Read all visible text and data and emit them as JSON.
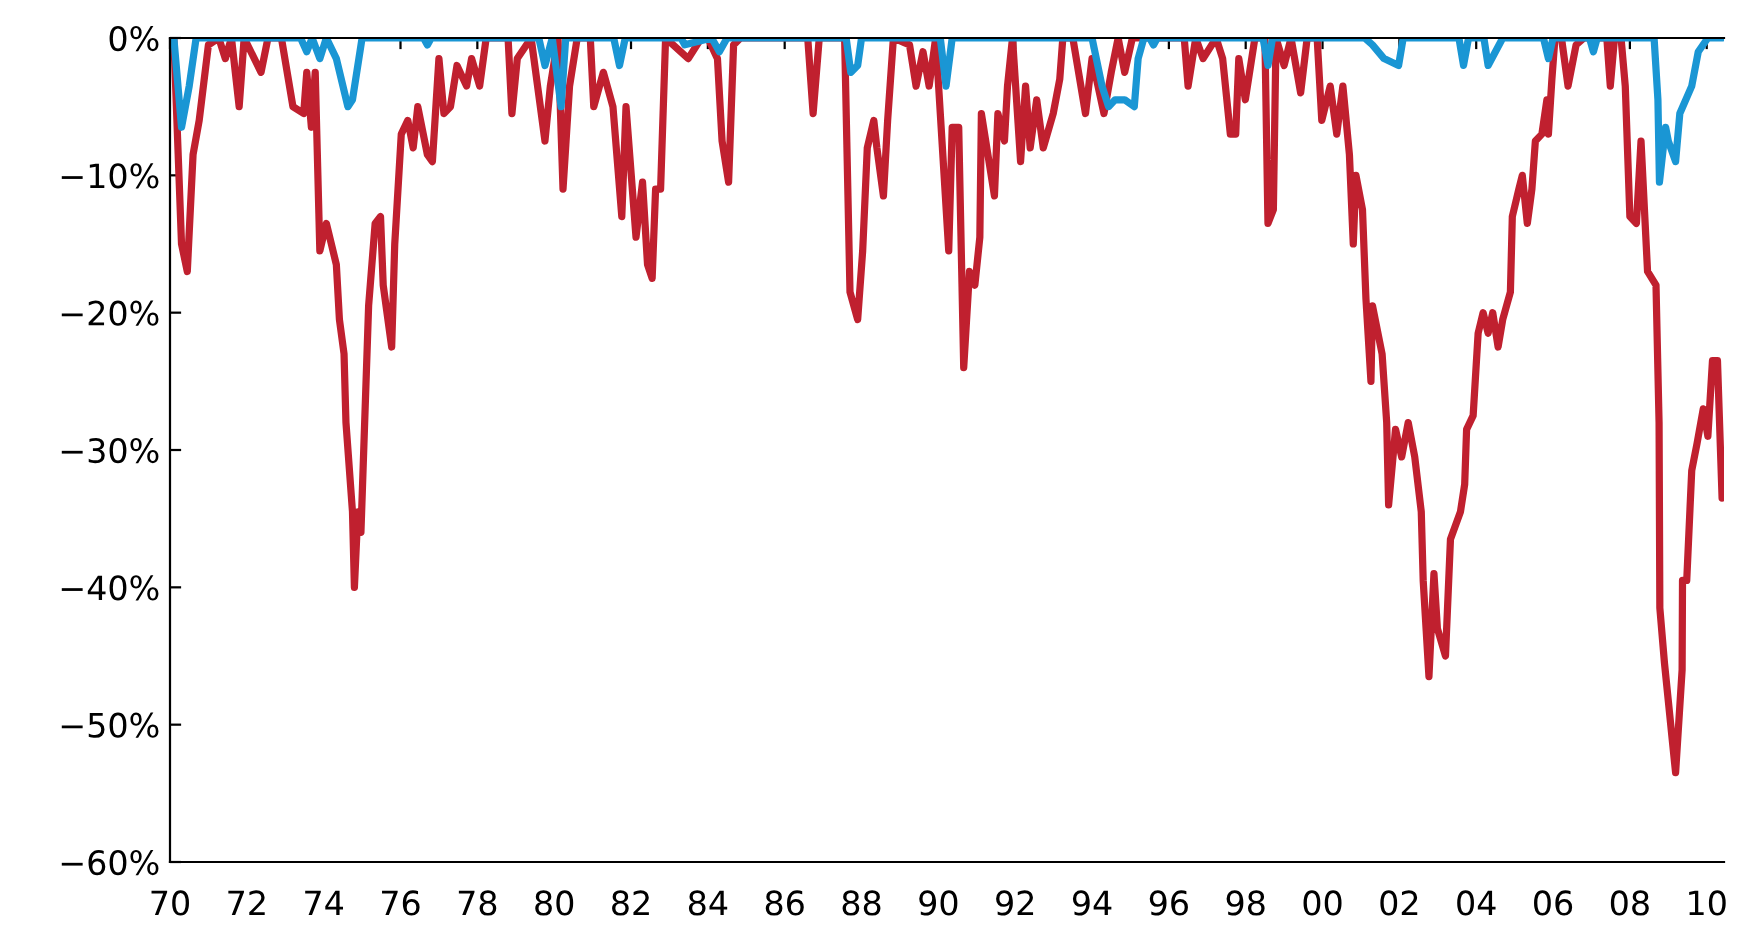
{
  "chart_data": {
    "type": "line",
    "xlim": [
      1970,
      2010.45
    ],
    "ylim": [
      -60,
      0
    ],
    "xticks": [
      {
        "value": 1970,
        "label": "70"
      },
      {
        "value": 1972,
        "label": "72"
      },
      {
        "value": 1974,
        "label": "74"
      },
      {
        "value": 1976,
        "label": "76"
      },
      {
        "value": 1978,
        "label": "78"
      },
      {
        "value": 1980,
        "label": "80"
      },
      {
        "value": 1982,
        "label": "82"
      },
      {
        "value": 1984,
        "label": "84"
      },
      {
        "value": 1986,
        "label": "86"
      },
      {
        "value": 1988,
        "label": "88"
      },
      {
        "value": 1990,
        "label": "90"
      },
      {
        "value": 1992,
        "label": "92"
      },
      {
        "value": 1994,
        "label": "94"
      },
      {
        "value": 1996,
        "label": "96"
      },
      {
        "value": 1998,
        "label": "98"
      },
      {
        "value": 2000,
        "label": "00"
      },
      {
        "value": 2002,
        "label": "02"
      },
      {
        "value": 2004,
        "label": "04"
      },
      {
        "value": 2006,
        "label": "06"
      },
      {
        "value": 2008,
        "label": "08"
      },
      {
        "value": 2010,
        "label": "10"
      }
    ],
    "yticks": [
      {
        "value": -60,
        "label": "−60%"
      },
      {
        "value": -50,
        "label": "−50%"
      },
      {
        "value": -40,
        "label": "−40%"
      },
      {
        "value": -30,
        "label": "−30%"
      },
      {
        "value": -20,
        "label": "−20%"
      },
      {
        "value": -10,
        "label": "−10%"
      },
      {
        "value": 0,
        "label": "0%"
      }
    ],
    "grid": false,
    "line_style": "solid",
    "marker": "none",
    "series": [
      {
        "color": "#c0202f",
        "x": [
          1970.1,
          1970.3,
          1970.45,
          1970.6,
          1970.76,
          1971.0,
          1971.27,
          1971.44,
          1971.6,
          1971.8,
          1971.93,
          1972.37,
          1972.55,
          1972.9,
          1973.2,
          1973.48,
          1973.56,
          1973.68,
          1973.78,
          1973.9,
          1974.07,
          1974.33,
          1974.41,
          1974.53,
          1974.58,
          1974.75,
          1974.8,
          1974.89,
          1974.97,
          1975.17,
          1975.34,
          1975.48,
          1975.55,
          1975.77,
          1975.85,
          1976.02,
          1976.19,
          1976.33,
          1976.45,
          1976.7,
          1976.83,
          1977.0,
          1977.13,
          1977.3,
          1977.47,
          1977.72,
          1977.85,
          1978.06,
          1978.23,
          1978.8,
          1978.9,
          1979.04,
          1979.4,
          1979.76,
          1979.9,
          1980.1,
          1980.23,
          1980.4,
          1980.6,
          1980.94,
          1981.03,
          1981.28,
          1981.53,
          1981.76,
          1981.87,
          1982.13,
          1982.3,
          1982.43,
          1982.55,
          1982.64,
          1982.77,
          1982.9,
          1983.49,
          1983.83,
          1984.0,
          1984.25,
          1984.37,
          1984.54,
          1984.67,
          1984.85,
          1986.6,
          1986.74,
          1986.9,
          1987.56,
          1987.7,
          1987.9,
          1988.03,
          1988.15,
          1988.32,
          1988.4,
          1988.57,
          1988.68,
          1988.83,
          1989.25,
          1989.42,
          1989.6,
          1989.76,
          1989.93,
          1990.27,
          1990.36,
          1990.53,
          1990.66,
          1990.81,
          1990.95,
          1991.08,
          1991.12,
          1991.29,
          1991.46,
          1991.55,
          1991.72,
          1991.8,
          1991.93,
          1992.14,
          1992.27,
          1992.39,
          1992.56,
          1992.73,
          1992.99,
          1993.16,
          1993.24,
          1993.5,
          1993.83,
          1994.0,
          1994.31,
          1994.5,
          1994.68,
          1994.85,
          1995.05,
          1996.4,
          1996.5,
          1996.7,
          1996.89,
          1997.23,
          1997.4,
          1997.6,
          1997.74,
          1997.82,
          1997.99,
          1998.24,
          1998.5,
          1998.58,
          1998.72,
          1998.79,
          1999.0,
          1999.18,
          1999.43,
          1999.6,
          1999.86,
          1999.98,
          2000.2,
          2000.37,
          2000.53,
          2000.7,
          2000.8,
          2000.87,
          2001.04,
          2001.13,
          2001.26,
          2001.3,
          2001.55,
          2001.67,
          2001.72,
          2001.9,
          2002.06,
          2002.23,
          2002.4,
          2002.57,
          2002.62,
          2002.77,
          2002.9,
          2002.99,
          2003.2,
          2003.33,
          2003.59,
          2003.7,
          2003.75,
          2003.92,
          2004.05,
          2004.18,
          2004.31,
          2004.43,
          2004.57,
          2004.69,
          2004.89,
          2004.94,
          2005.11,
          2005.2,
          2005.33,
          2005.45,
          2005.54,
          2005.71,
          2005.84,
          2005.88,
          2005.97,
          2006.05,
          2006.22,
          2006.39,
          2006.6,
          2006.8,
          2007.4,
          2007.49,
          2007.6,
          2007.77,
          2007.88,
          2008.0,
          2008.17,
          2008.29,
          2008.46,
          2008.68,
          2008.76,
          2008.78,
          2008.9,
          2009.19,
          2009.36,
          2009.37,
          2009.48,
          2009.61,
          2009.75,
          2009.91,
          2010.03,
          2010.15,
          2010.28,
          2010.4
        ],
        "values": [
          0,
          -15,
          -17,
          -8.5,
          -6,
          -0.5,
          0,
          -1.5,
          0,
          -5,
          0,
          -2.5,
          0,
          0,
          -5,
          -5.5,
          -2.5,
          -6.5,
          -2.5,
          -15.5,
          -13.5,
          -16.5,
          -20.5,
          -23,
          -28,
          -34.5,
          -40,
          -34.5,
          -36,
          -19.5,
          -13.5,
          -13,
          -18,
          -22.5,
          -15,
          -7,
          -6,
          -8,
          -5,
          -8.5,
          -9,
          -1.5,
          -5.5,
          -5,
          -2,
          -3.5,
          -1.5,
          -3.5,
          0,
          0,
          -5.5,
          -1.5,
          0,
          -7.5,
          -3.5,
          0,
          -11,
          -3.5,
          0,
          0,
          -5,
          -2.5,
          -5,
          -13,
          -5,
          -14.5,
          -10.5,
          -16.5,
          -17.5,
          -11,
          -11,
          0,
          -1.5,
          0,
          0,
          -1.5,
          -7.5,
          -10.5,
          -0.5,
          0,
          0,
          -5.5,
          0,
          0,
          -18.5,
          -20.5,
          -15.5,
          -8,
          -6,
          -8,
          -11.5,
          -6,
          0,
          -0.5,
          -3.5,
          -1,
          -3.5,
          0,
          -15.5,
          -6.5,
          -6.5,
          -24,
          -17,
          -18,
          -14.5,
          -5.5,
          -8.5,
          -11.5,
          -5.5,
          -7.5,
          -3.5,
          0,
          -9,
          -3.5,
          -8,
          -4.5,
          -8,
          -5.5,
          -3,
          0,
          0,
          -5.5,
          -1.5,
          -5.5,
          -2.5,
          0,
          -2.5,
          0,
          0,
          -3.5,
          0,
          -1.5,
          0,
          -1.5,
          -7,
          -7,
          -1.5,
          -4.5,
          0,
          0,
          -13.5,
          -12.5,
          0,
          -2,
          0,
          -4,
          0,
          0,
          -6,
          -3.5,
          -7,
          -3.5,
          -8.5,
          -15,
          -10,
          -12.5,
          -19,
          -25,
          -19.5,
          -23,
          -28,
          -34,
          -28.5,
          -30.5,
          -28,
          -30.5,
          -34.5,
          -39.5,
          -46.5,
          -39,
          -43,
          -45,
          -36.5,
          -34.5,
          -32.5,
          -28.5,
          -27.5,
          -21.5,
          -20,
          -21.5,
          -20,
          -22.5,
          -20.5,
          -18.5,
          -13,
          -11,
          -10,
          -13.5,
          -11,
          -7.5,
          -7,
          -4.5,
          -7,
          -3,
          0,
          0,
          -3.5,
          -0.5,
          0,
          0,
          -3.5,
          0,
          0,
          -3.5,
          -13,
          -13.5,
          -7.5,
          -17,
          -18,
          -28,
          -41.5,
          -45.5,
          -53.5,
          -46,
          -39.5,
          -39.5,
          -31.5,
          -29.5,
          -27,
          -29,
          -23.5,
          -23.5,
          -33.5
        ]
      },
      {
        "color": "#1a96d4",
        "x": [
          1970.1,
          1970.3,
          1970.5,
          1970.68,
          1973.4,
          1973.56,
          1973.7,
          1973.9,
          1974.07,
          1974.33,
          1974.63,
          1974.75,
          1975.0,
          1976.6,
          1976.7,
          1976.8,
          1979.6,
          1979.76,
          1979.95,
          1980.18,
          1980.3,
          1981.55,
          1981.7,
          1981.85,
          1983.3,
          1983.4,
          1984.1,
          1984.3,
          1984.5,
          1987.6,
          1987.72,
          1987.9,
          1988.0,
          1990.05,
          1990.2,
          1990.36,
          1994.0,
          1994.26,
          1994.43,
          1994.6,
          1994.85,
          1995.1,
          1995.2,
          1995.35,
          1995.5,
          1995.6,
          1995.7,
          1998.45,
          1998.58,
          1998.7,
          2001.1,
          2001.3,
          2001.6,
          2001.98,
          2002.1,
          2003.55,
          2003.67,
          2003.8,
          2004.2,
          2004.31,
          2004.69,
          2005.75,
          2005.88,
          2006.0,
          2006.95,
          2007.05,
          2007.15,
          2008.63,
          2008.73,
          2008.77,
          2008.93,
          2009.0,
          2009.19,
          2009.3,
          2009.61,
          2009.78,
          2010.03,
          2010.4
        ],
        "values": [
          0,
          -6.5,
          -3.5,
          0,
          0,
          -1,
          0,
          -1.5,
          0,
          -1.5,
          -5,
          -4.5,
          0,
          0,
          -0.5,
          0,
          0,
          -2,
          0,
          -5,
          0,
          0,
          -2,
          0,
          0,
          -0.5,
          0,
          -1,
          0,
          0,
          -2.5,
          -2,
          0,
          0,
          -3.5,
          0,
          0,
          -3.5,
          -5,
          -4.5,
          -4.5,
          -5,
          -1.5,
          0,
          0,
          -0.5,
          0,
          0,
          -2,
          0,
          0,
          -0.5,
          -1.5,
          -2,
          0,
          0,
          -2,
          0,
          0,
          -2,
          0,
          0,
          -1.5,
          0,
          0,
          -1,
          0,
          0,
          -4.5,
          -10.5,
          -6.5,
          -7.5,
          -9,
          -5.5,
          -3.5,
          -1,
          0,
          0
        ]
      }
    ]
  }
}
